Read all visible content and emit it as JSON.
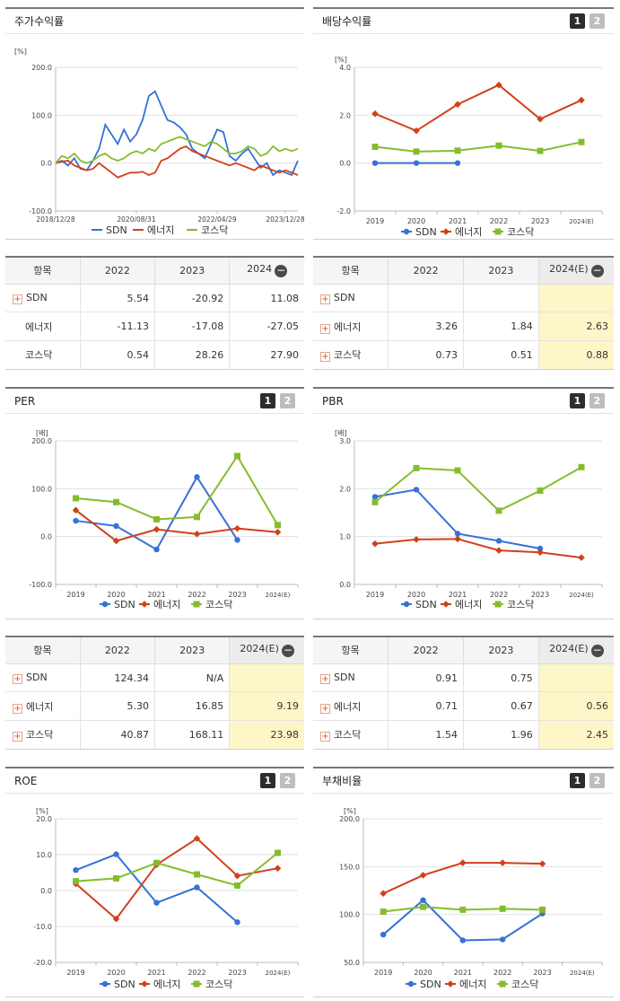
{
  "legend": {
    "sdn": "SDN",
    "energy": "에너지",
    "kosdaq": "코스닥"
  },
  "colors": {
    "sdn": "#3571d9",
    "energy": "#d1401a",
    "kosdaq": "#84bd2c"
  },
  "pager": [
    "1",
    "2"
  ],
  "stock_return": {
    "title": "주가수익률",
    "unit": "[%]",
    "chart_data": {
      "type": "line",
      "title": "주가수익률",
      "ylabel": "[%]",
      "ylim": [
        -100,
        200
      ],
      "yticks": [
        "200.0",
        "100.0",
        "0.0",
        "-100.0"
      ],
      "xticks": [
        "2018/12/28",
        "2020/08/31",
        "2022/04/29",
        "2023/12/28"
      ],
      "series": [
        {
          "name": "SDN",
          "values": [
            0,
            5,
            -5,
            10,
            -12,
            -15,
            5,
            30,
            80,
            60,
            40,
            70,
            45,
            60,
            90,
            140,
            150,
            120,
            90,
            85,
            75,
            60,
            30,
            20,
            10,
            40,
            70,
            65,
            15,
            5,
            20,
            30,
            10,
            -10,
            0,
            -25,
            -15,
            -20,
            -25,
            5
          ]
        },
        {
          "name": "에너지",
          "values": [
            0,
            3,
            5,
            -5,
            -10,
            -15,
            -12,
            0,
            -10,
            -20,
            -30,
            -25,
            -20,
            -20,
            -18,
            -25,
            -20,
            5,
            10,
            20,
            30,
            35,
            25,
            20,
            15,
            10,
            5,
            0,
            -5,
            0,
            -5,
            -10,
            -15,
            -5,
            -10,
            -15,
            -20,
            -15,
            -20,
            -25
          ]
        },
        {
          "name": "코스닥",
          "values": [
            0,
            15,
            10,
            20,
            5,
            0,
            5,
            15,
            20,
            10,
            5,
            10,
            20,
            25,
            20,
            30,
            25,
            40,
            45,
            50,
            55,
            50,
            45,
            40,
            35,
            45,
            40,
            30,
            20,
            20,
            25,
            35,
            30,
            15,
            20,
            35,
            25,
            30,
            25,
            30
          ]
        }
      ]
    }
  },
  "dividend": {
    "title": "배당수익률",
    "unit": "[%]",
    "chart_data": {
      "type": "line",
      "title": "배당수익률",
      "ylabel": "[%]",
      "ylim": [
        -2,
        4
      ],
      "yticks": [
        "4.0",
        "2.0",
        "0.0",
        "-2.0"
      ],
      "categories": [
        "2019",
        "2020",
        "2021",
        "2022",
        "2023",
        "2024(E)"
      ],
      "series": [
        {
          "name": "SDN",
          "values": [
            0.0,
            0.0,
            0.0,
            null,
            null,
            null
          ]
        },
        {
          "name": "에너지",
          "values": [
            2.06,
            1.35,
            2.45,
            3.26,
            1.84,
            2.63
          ]
        },
        {
          "name": "코스닥",
          "values": [
            0.68,
            0.48,
            0.52,
            0.73,
            0.51,
            0.88
          ]
        }
      ]
    }
  },
  "per": {
    "title": "PER",
    "unit": "[배]",
    "chart_data": {
      "type": "line",
      "title": "PER",
      "ylabel": "[배]",
      "ylim": [
        -100,
        200
      ],
      "yticks": [
        "200.0",
        "100.0",
        "0.0",
        "-100.0"
      ],
      "categories": [
        "2019",
        "2020",
        "2021",
        "2022",
        "2023",
        "2024(E)"
      ],
      "series": [
        {
          "name": "SDN",
          "values": [
            33,
            22,
            -27,
            124.34,
            -7,
            null
          ]
        },
        {
          "name": "에너지",
          "values": [
            55,
            -9,
            15,
            5.3,
            16.85,
            9.19
          ]
        },
        {
          "name": "코스닥",
          "values": [
            80,
            72,
            36,
            40.87,
            168.11,
            23.98
          ]
        }
      ]
    }
  },
  "pbr": {
    "title": "PBR",
    "unit": "[배]",
    "chart_data": {
      "type": "line",
      "title": "PBR",
      "ylabel": "[배]",
      "ylim": [
        0,
        3
      ],
      "yticks": [
        "3.0",
        "2.0",
        "1.0",
        "0.0"
      ],
      "categories": [
        "2019",
        "2020",
        "2021",
        "2022",
        "2023",
        "2024(E)"
      ],
      "series": [
        {
          "name": "SDN",
          "values": [
            1.83,
            1.98,
            1.06,
            0.91,
            0.75,
            null
          ]
        },
        {
          "name": "에너지",
          "values": [
            0.85,
            0.94,
            0.95,
            0.71,
            0.67,
            0.56
          ]
        },
        {
          "name": "코스닥",
          "values": [
            1.72,
            2.43,
            2.38,
            1.54,
            1.96,
            2.45
          ]
        }
      ]
    }
  },
  "roe": {
    "title": "ROE",
    "unit": "[%]",
    "chart_data": {
      "type": "line",
      "title": "ROE",
      "ylabel": "[%]",
      "ylim": [
        -20,
        20
      ],
      "yticks": [
        "20.0",
        "10.0",
        "0.0",
        "-10.0",
        "-20.0"
      ],
      "categories": [
        "2019",
        "2020",
        "2021",
        "2022",
        "2023",
        "2024(E)"
      ],
      "series": [
        {
          "name": "SDN",
          "values": [
            5.7,
            10.1,
            -3.4,
            0.9,
            -8.8,
            null
          ]
        },
        {
          "name": "에너지",
          "values": [
            1.9,
            -7.9,
            7.2,
            14.5,
            4.1,
            6.2
          ]
        },
        {
          "name": "코스닥",
          "values": [
            2.6,
            3.4,
            7.7,
            4.5,
            1.4,
            10.5
          ]
        }
      ]
    }
  },
  "debt": {
    "title": "부채비율",
    "unit": "[%]",
    "chart_data": {
      "type": "line",
      "title": "부채비율",
      "ylabel": "[%]",
      "ylim": [
        50,
        200
      ],
      "yticks": [
        "200.0",
        "150.0",
        "100.0",
        "50.0"
      ],
      "categories": [
        "2019",
        "2020",
        "2021",
        "2022",
        "2023",
        "2024(E)"
      ],
      "series": [
        {
          "name": "SDN",
          "values": [
            79,
            115,
            73,
            74,
            101,
            null
          ]
        },
        {
          "name": "에너지",
          "values": [
            122,
            141,
            154,
            154,
            153,
            null
          ]
        },
        {
          "name": "코스닥",
          "values": [
            103,
            108,
            105,
            106,
            105,
            null
          ]
        }
      ]
    }
  },
  "tables": {
    "stock_return": {
      "headers": [
        "항목",
        "2022",
        "2023",
        "2024"
      ],
      "rows": [
        {
          "name": "SDN",
          "plus": true,
          "values": [
            "5.54",
            "-20.92",
            "11.08"
          ]
        },
        {
          "name": "에너지",
          "plus": false,
          "values": [
            "-11.13",
            "-17.08",
            "-27.05"
          ]
        },
        {
          "name": "코스닥",
          "plus": false,
          "values": [
            "0.54",
            "28.26",
            "27.90"
          ]
        }
      ]
    },
    "dividend": {
      "headers": [
        "항목",
        "2022",
        "2023",
        "2024(E)"
      ],
      "rows": [
        {
          "name": "SDN",
          "plus": true,
          "values": [
            "",
            "",
            ""
          ]
        },
        {
          "name": "에너지",
          "plus": true,
          "values": [
            "3.26",
            "1.84",
            "2.63"
          ]
        },
        {
          "name": "코스닥",
          "plus": true,
          "values": [
            "0.73",
            "0.51",
            "0.88"
          ]
        }
      ]
    },
    "per": {
      "headers": [
        "항목",
        "2022",
        "2023",
        "2024(E)"
      ],
      "rows": [
        {
          "name": "SDN",
          "plus": true,
          "values": [
            "124.34",
            "N/A",
            ""
          ]
        },
        {
          "name": "에너지",
          "plus": true,
          "values": [
            "5.30",
            "16.85",
            "9.19"
          ]
        },
        {
          "name": "코스닥",
          "plus": true,
          "values": [
            "40.87",
            "168.11",
            "23.98"
          ]
        }
      ]
    },
    "pbr": {
      "headers": [
        "항목",
        "2022",
        "2023",
        "2024(E)"
      ],
      "rows": [
        {
          "name": "SDN",
          "plus": true,
          "values": [
            "0.91",
            "0.75",
            ""
          ]
        },
        {
          "name": "에너지",
          "plus": true,
          "values": [
            "0.71",
            "0.67",
            "0.56"
          ]
        },
        {
          "name": "코스닥",
          "plus": true,
          "values": [
            "1.54",
            "1.96",
            "2.45"
          ]
        }
      ]
    }
  }
}
